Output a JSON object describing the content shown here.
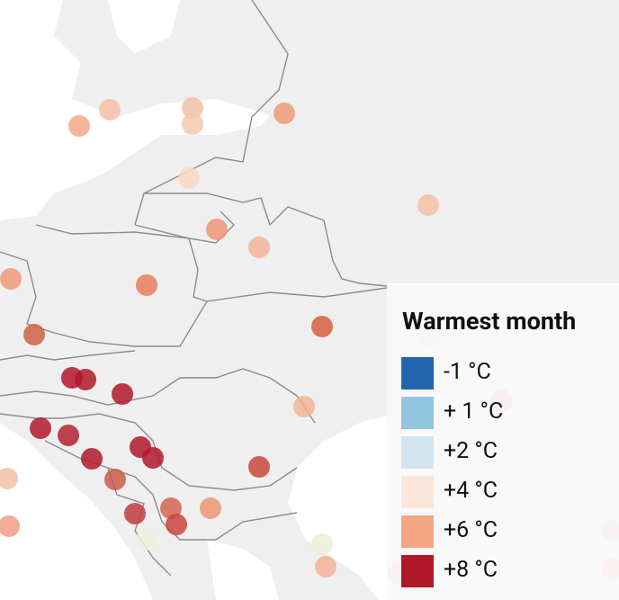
{
  "legend": {
    "title": "Warmest month",
    "items": [
      {
        "label": "-1 °C",
        "color": "#2166ac"
      },
      {
        "label": "+ 1 °C",
        "color": "#92c5de"
      },
      {
        "label": "+2 °C",
        "color": "#d1e5f0"
      },
      {
        "label": "+4 °C",
        "color": "#fbe7da"
      },
      {
        "label": "+6 °C",
        "color": "#f4a582"
      },
      {
        "label": "+8 °C",
        "color": "#b2182b"
      }
    ]
  }
}
